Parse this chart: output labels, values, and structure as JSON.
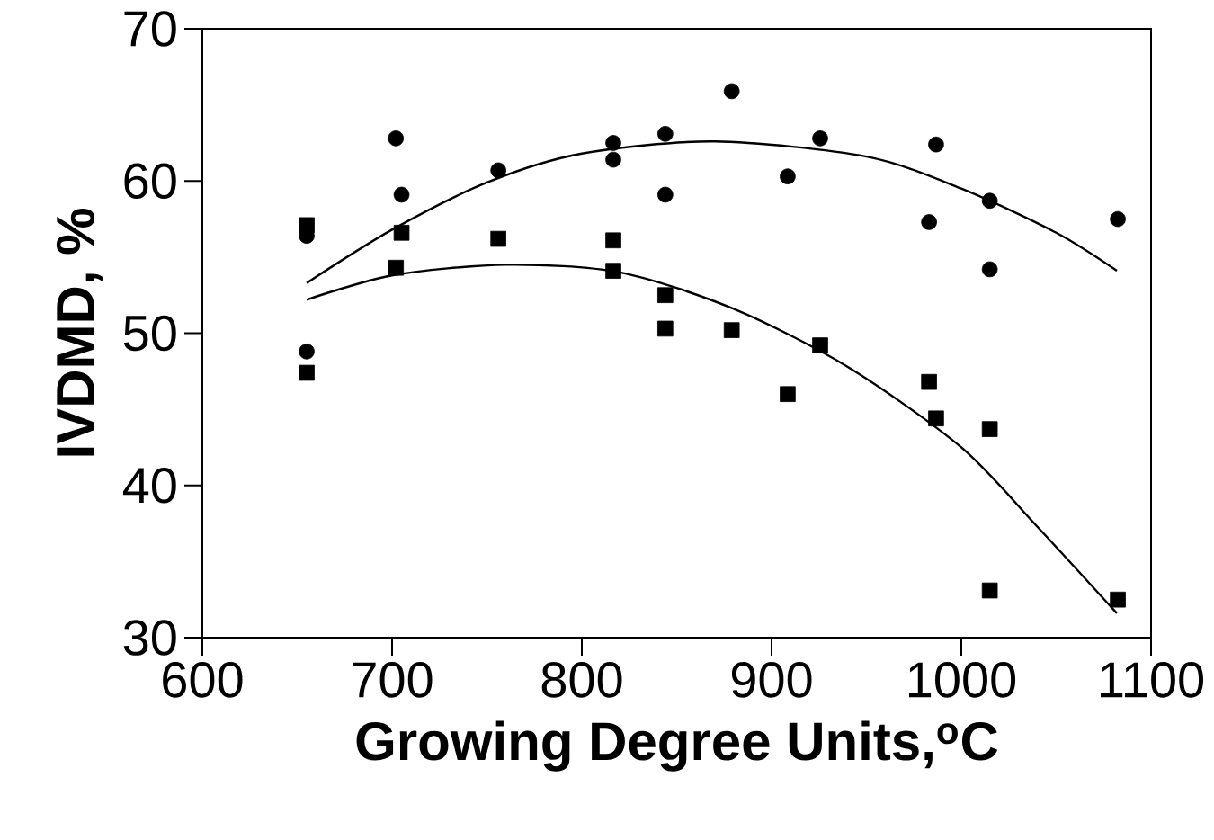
{
  "chart_data": {
    "type": "scatter",
    "xlabel": "Growing Degree Units,$^{o}$C",
    "ylabel": "IVDMD, %",
    "xlim": [
      600,
      1100
    ],
    "xticks": [
      600,
      700,
      800,
      900,
      1000,
      1100
    ],
    "ylim": [
      30,
      70
    ],
    "yticks": [
      30,
      40,
      50,
      60,
      70
    ],
    "grid": false,
    "series": [
      {
        "marker": "circle",
        "color": "#000000",
        "x": [
          655,
          655,
          702,
          705,
          756,
          816.6,
          816.6,
          844,
          844,
          879,
          908.5,
          925.6,
          983,
          986.7,
          1015,
          1015,
          1082.5
        ],
        "values": [
          56.4,
          48.8,
          62.8,
          59.1,
          60.7,
          62.5,
          61.4,
          63.1,
          59.1,
          65.9,
          60.3,
          62.8,
          57.3,
          62.4,
          58.7,
          54.2,
          57.5
        ]
      },
      {
        "marker": "square",
        "color": "#000000",
        "x": [
          655,
          655,
          702,
          705,
          756,
          816.6,
          816.6,
          844,
          844,
          879,
          908.5,
          925.6,
          983,
          986.7,
          1015,
          1015,
          1082.5
        ],
        "values": [
          57.1,
          47.4,
          54.3,
          56.6,
          56.2,
          56.1,
          54.1,
          52.5,
          50.3,
          50.2,
          46.0,
          49.2,
          46.8,
          44.4,
          43.7,
          33.1,
          32.5
        ]
      },
      {
        "type": "line",
        "marker": "none",
        "line_style": "solid",
        "color": "#000000",
        "x": [
          655,
          700,
          750,
          800,
          870,
          950,
          1000,
          1050,
          1082
        ],
        "values": [
          53.3,
          56.8,
          59.9,
          61.8,
          62.6,
          61.6,
          59.5,
          56.6,
          54.1
        ]
      },
      {
        "type": "line",
        "marker": "none",
        "line_style": "solid",
        "color": "#000000",
        "x": [
          655,
          700,
          760,
          820,
          880,
          940,
          1000,
          1040,
          1082
        ],
        "values": [
          52.2,
          53.8,
          54.5,
          54.0,
          51.6,
          47.8,
          42.5,
          37.3,
          31.6
        ]
      }
    ]
  }
}
